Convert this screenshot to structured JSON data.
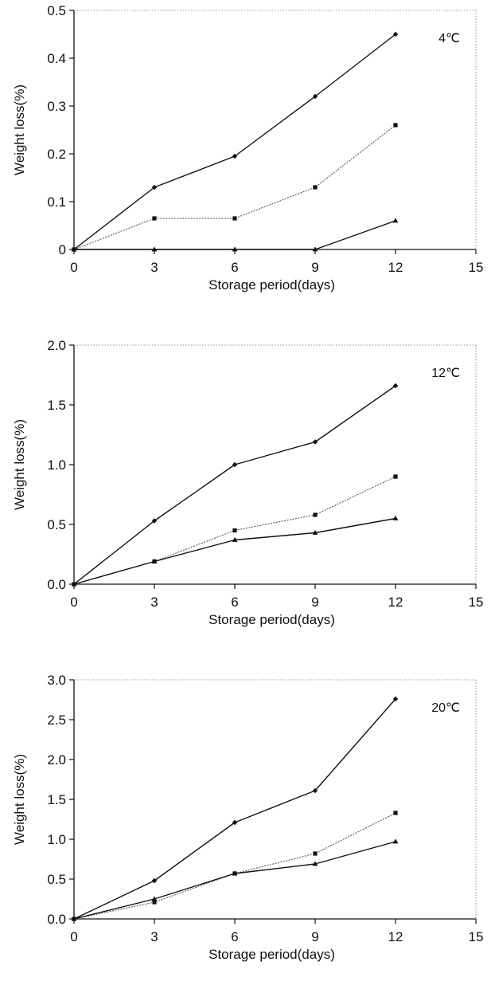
{
  "chart_data": [
    {
      "type": "line",
      "annotation": "4℃",
      "xlabel": "Storage period(days)",
      "ylabel": "Weight loss(%)",
      "xlim": [
        0,
        15
      ],
      "ylim": [
        0,
        0.5
      ],
      "x_ticks": [
        0,
        3,
        6,
        9,
        12,
        15
      ],
      "y_ticks": [
        0,
        0.1,
        0.2,
        0.3,
        0.4,
        0.5
      ],
      "y_tick_labels": [
        "0",
        "0.1",
        "0.2",
        "0.3",
        "0.4",
        "0.5"
      ],
      "x": [
        0,
        3,
        6,
        9,
        12
      ],
      "series": [
        {
          "marker": "diamond",
          "values": [
            0,
            0.13,
            0.195,
            0.32,
            0.45
          ]
        },
        {
          "marker": "square",
          "values": [
            0,
            0.065,
            0.065,
            0.13,
            0.26
          ]
        },
        {
          "marker": "triangle",
          "values": [
            0,
            0,
            0,
            0,
            0.06
          ]
        }
      ]
    },
    {
      "type": "line",
      "annotation": "12℃",
      "xlabel": "Storage period(days)",
      "ylabel": "Weight loss(%)",
      "xlim": [
        0,
        15
      ],
      "ylim": [
        0,
        2.0
      ],
      "x_ticks": [
        0,
        3,
        6,
        9,
        12,
        15
      ],
      "y_ticks": [
        0,
        0.5,
        1.0,
        1.5,
        2.0
      ],
      "y_tick_labels": [
        "0.0",
        "0.5",
        "1.0",
        "1.5",
        "2.0"
      ],
      "x": [
        0,
        3,
        6,
        9,
        12
      ],
      "series": [
        {
          "marker": "diamond",
          "values": [
            0,
            0.53,
            1.0,
            1.19,
            1.66
          ]
        },
        {
          "marker": "square",
          "values": [
            0,
            0.19,
            0.45,
            0.58,
            0.9
          ]
        },
        {
          "marker": "triangle",
          "values": [
            0,
            0.19,
            0.37,
            0.43,
            0.55
          ]
        }
      ]
    },
    {
      "type": "line",
      "annotation": "20℃",
      "xlabel": "Storage period(days)",
      "ylabel": "Weight loss(%)",
      "xlim": [
        0,
        15
      ],
      "ylim": [
        0,
        3.0
      ],
      "x_ticks": [
        0,
        3,
        6,
        9,
        12,
        15
      ],
      "y_ticks": [
        0,
        0.5,
        1.0,
        1.5,
        2.0,
        2.5,
        3.0
      ],
      "y_tick_labels": [
        "0.0",
        "0.5",
        "1.0",
        "1.5",
        "2.0",
        "2.5",
        "3.0"
      ],
      "x": [
        0,
        3,
        6,
        9,
        12
      ],
      "series": [
        {
          "marker": "diamond",
          "values": [
            0,
            0.48,
            1.21,
            1.61,
            2.76
          ]
        },
        {
          "marker": "square",
          "values": [
            0,
            0.21,
            0.57,
            0.82,
            1.33
          ]
        },
        {
          "marker": "triangle",
          "values": [
            0,
            0.25,
            0.57,
            0.69,
            0.97
          ]
        }
      ]
    }
  ]
}
